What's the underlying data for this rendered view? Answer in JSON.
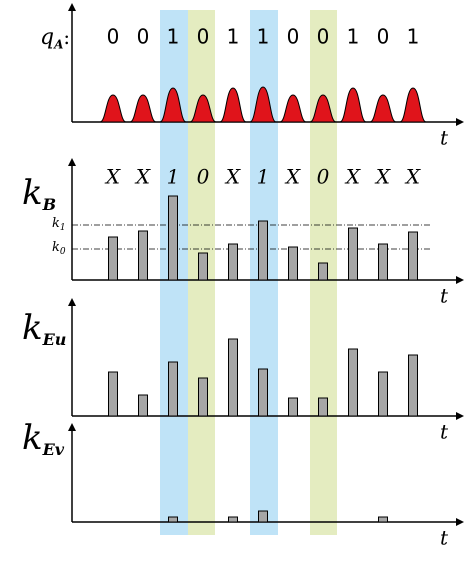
{
  "panels": [
    {
      "label": {
        "main": "q",
        "sub": "A",
        "suffix": ":"
      },
      "symbols": [
        "0",
        "0",
        "1",
        "0",
        "1",
        "1",
        "0",
        "0",
        "1",
        "0",
        "1"
      ],
      "pulses": [
        27,
        27,
        34,
        27,
        34,
        35,
        27,
        27,
        34,
        27,
        34
      ],
      "axis_label": "t"
    },
    {
      "label": {
        "main": "k",
        "sub": "B"
      },
      "symbols": [
        "X",
        "X",
        "1",
        "0",
        "X",
        "1",
        "X",
        "0",
        "X",
        "X",
        "X"
      ],
      "thresholds": [
        {
          "main": "k",
          "sub": "1",
          "value": 55
        },
        {
          "main": "k",
          "sub": "0",
          "value": 31
        }
      ],
      "bars": [
        43,
        49,
        84,
        27,
        36,
        59,
        33,
        17,
        52,
        36,
        48
      ],
      "axis_label": "t"
    },
    {
      "label": {
        "main": "k",
        "sub": "Eu"
      },
      "bars": [
        44,
        21,
        54,
        38,
        77,
        47,
        18,
        18,
        67,
        44,
        61
      ],
      "axis_label": "t"
    },
    {
      "label": {
        "main": "k",
        "sub": "Ev"
      },
      "bars": [
        0,
        0,
        5,
        0,
        5,
        11,
        0,
        0,
        0,
        5,
        0
      ],
      "axis_label": "t"
    }
  ]
}
